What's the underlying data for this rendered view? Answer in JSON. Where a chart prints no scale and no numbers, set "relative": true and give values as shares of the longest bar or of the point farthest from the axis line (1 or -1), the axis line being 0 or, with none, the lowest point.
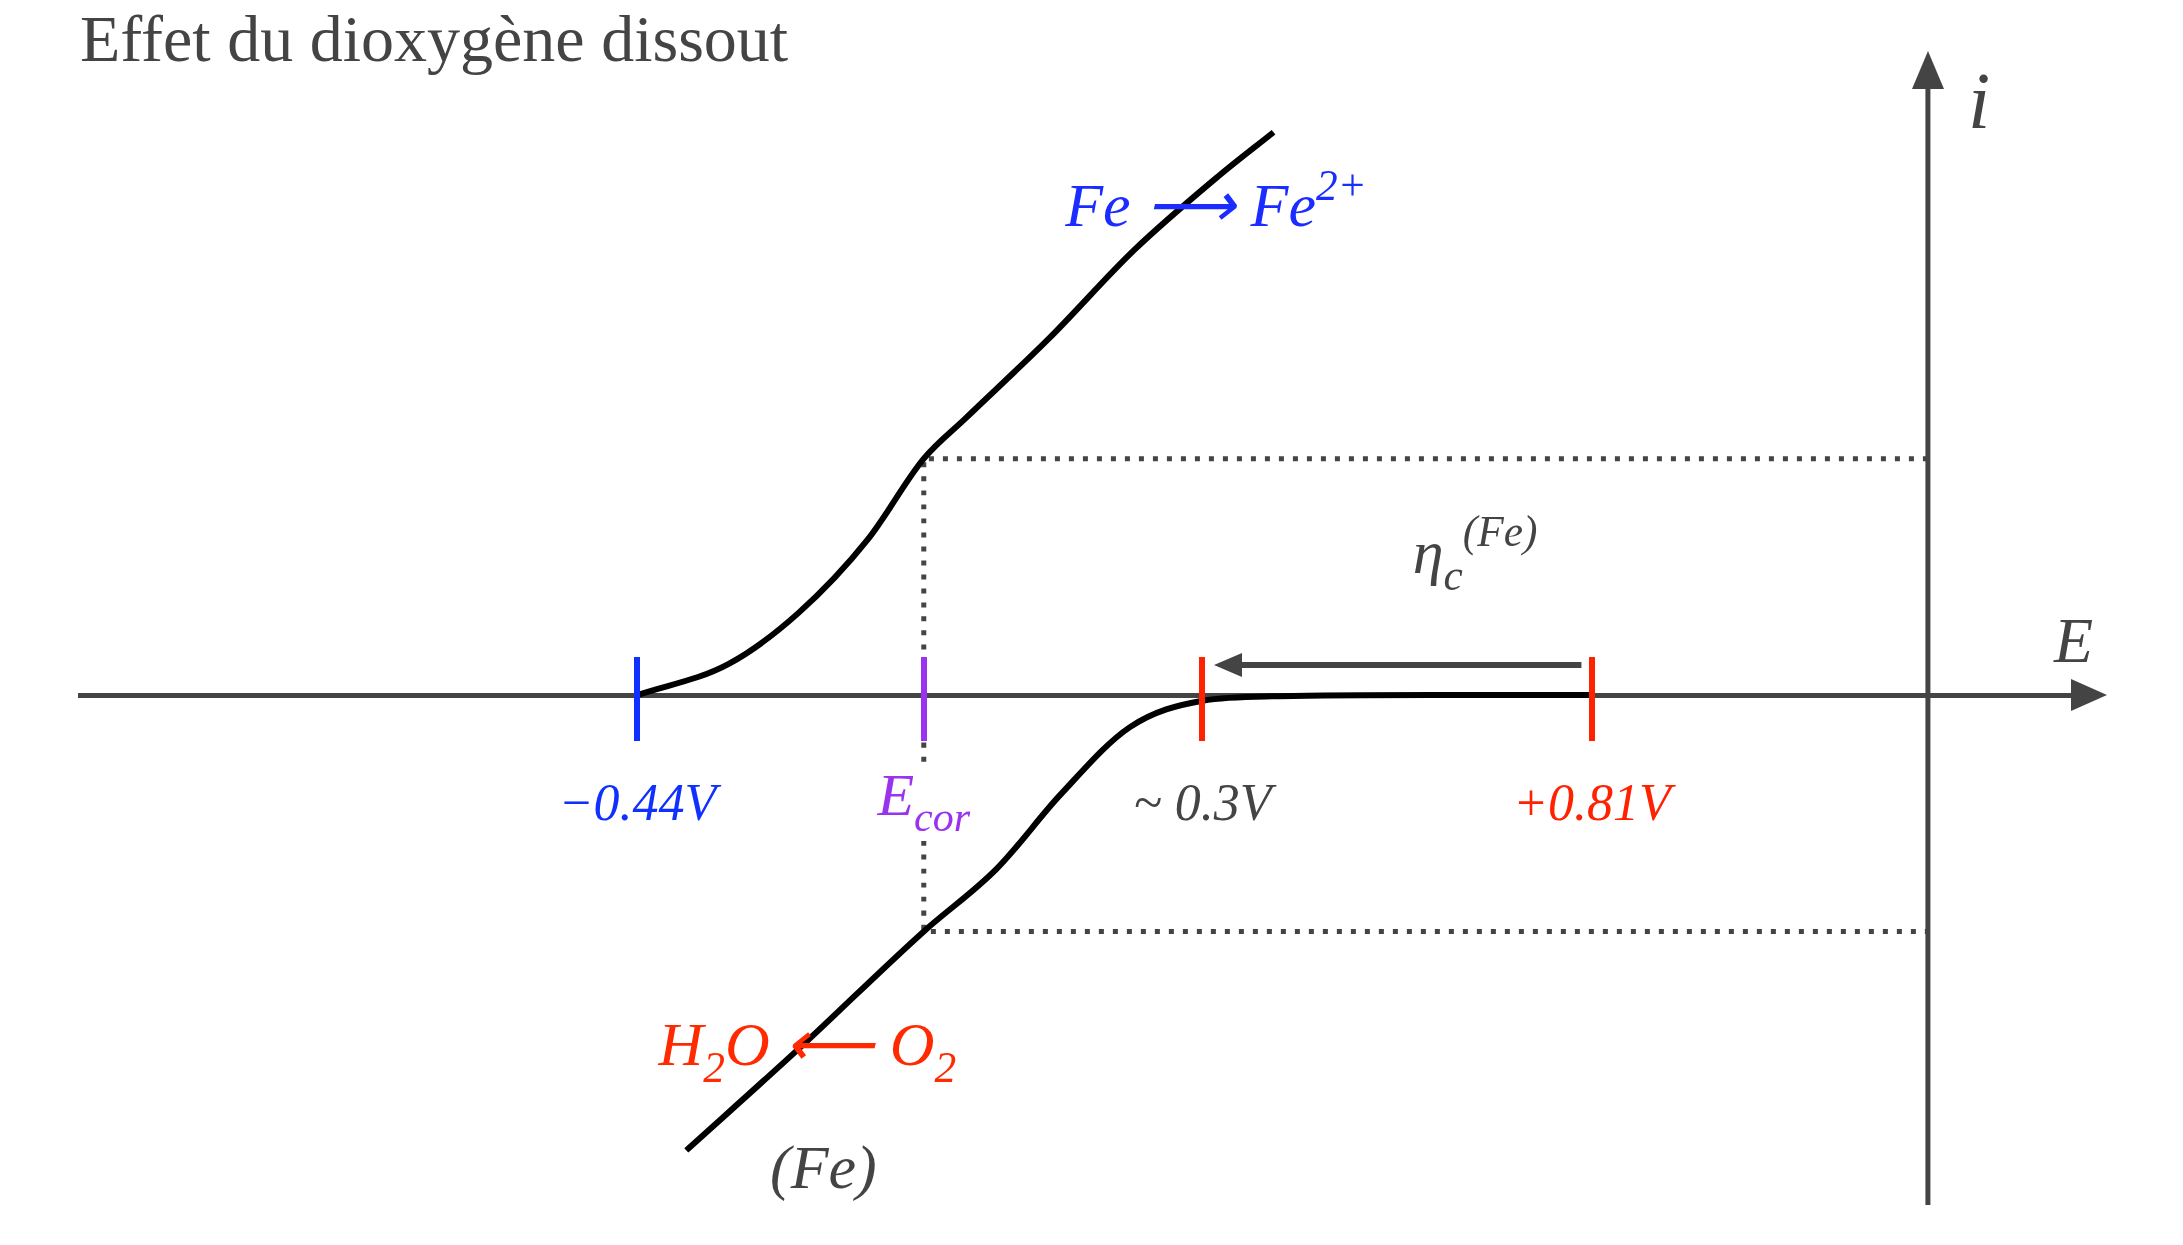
{
  "chart_data": {
    "type": "line",
    "title": "Effet du dioxygène dissout",
    "xlabel": "E",
    "ylabel": "i",
    "relative": true,
    "xlim": [
      -1.17,
      1.44
    ],
    "xticks": [
      {
        "value": -0.44,
        "label": "−0.44V"
      },
      {
        "value": -0.065,
        "label": "E$_{cor}$"
      },
      {
        "value": 0.3,
        "label": "~ 0.3V"
      },
      {
        "value": 0.81,
        "label": "+0.81V"
      }
    ],
    "series": [
      {
        "color": "#000000",
        "x": [
          -0.44,
          -0.321,
          -0.229,
          -0.138,
          -0.065,
          -0.01,
          0.1,
          0.21,
          0.32,
          0.393
        ],
        "values": [
          0,
          0.055,
          0.146,
          0.277,
          0.42,
          0.492,
          0.635,
          0.79,
          0.921,
          1
        ]
      },
      {
        "color": "#000000",
        "x": [
          -0.376,
          -0.23,
          -0.065,
          0.031,
          0.114,
          0.205,
          0.3,
          0.4,
          0.6,
          0.81
        ],
        "values": [
          -0.809,
          -0.63,
          -0.42,
          -0.308,
          -0.177,
          -0.057,
          -0.01,
          -0.002,
          0,
          0
        ]
      },
      {
        "color": "#444444",
        "line_style": "dotted",
        "x": [
          1.25,
          -0.065,
          -0.065,
          1.25
        ],
        "values": [
          0.42,
          0.42,
          -0.42,
          -0.42
        ]
      }
    ],
    "ref_lines": [
      {
        "axis": "x",
        "value": 1.25,
        "color": "#444444"
      }
    ],
    "annotations": [
      "Fe ⟶ Fe$^{2+}$",
      "H$_{2}$O ⟵ O$_{2}$",
      "(Fe)",
      "η$_{c}$$^{(Fe)}$"
    ],
    "grid": false,
    "legend": false,
    "marker": "none"
  }
}
